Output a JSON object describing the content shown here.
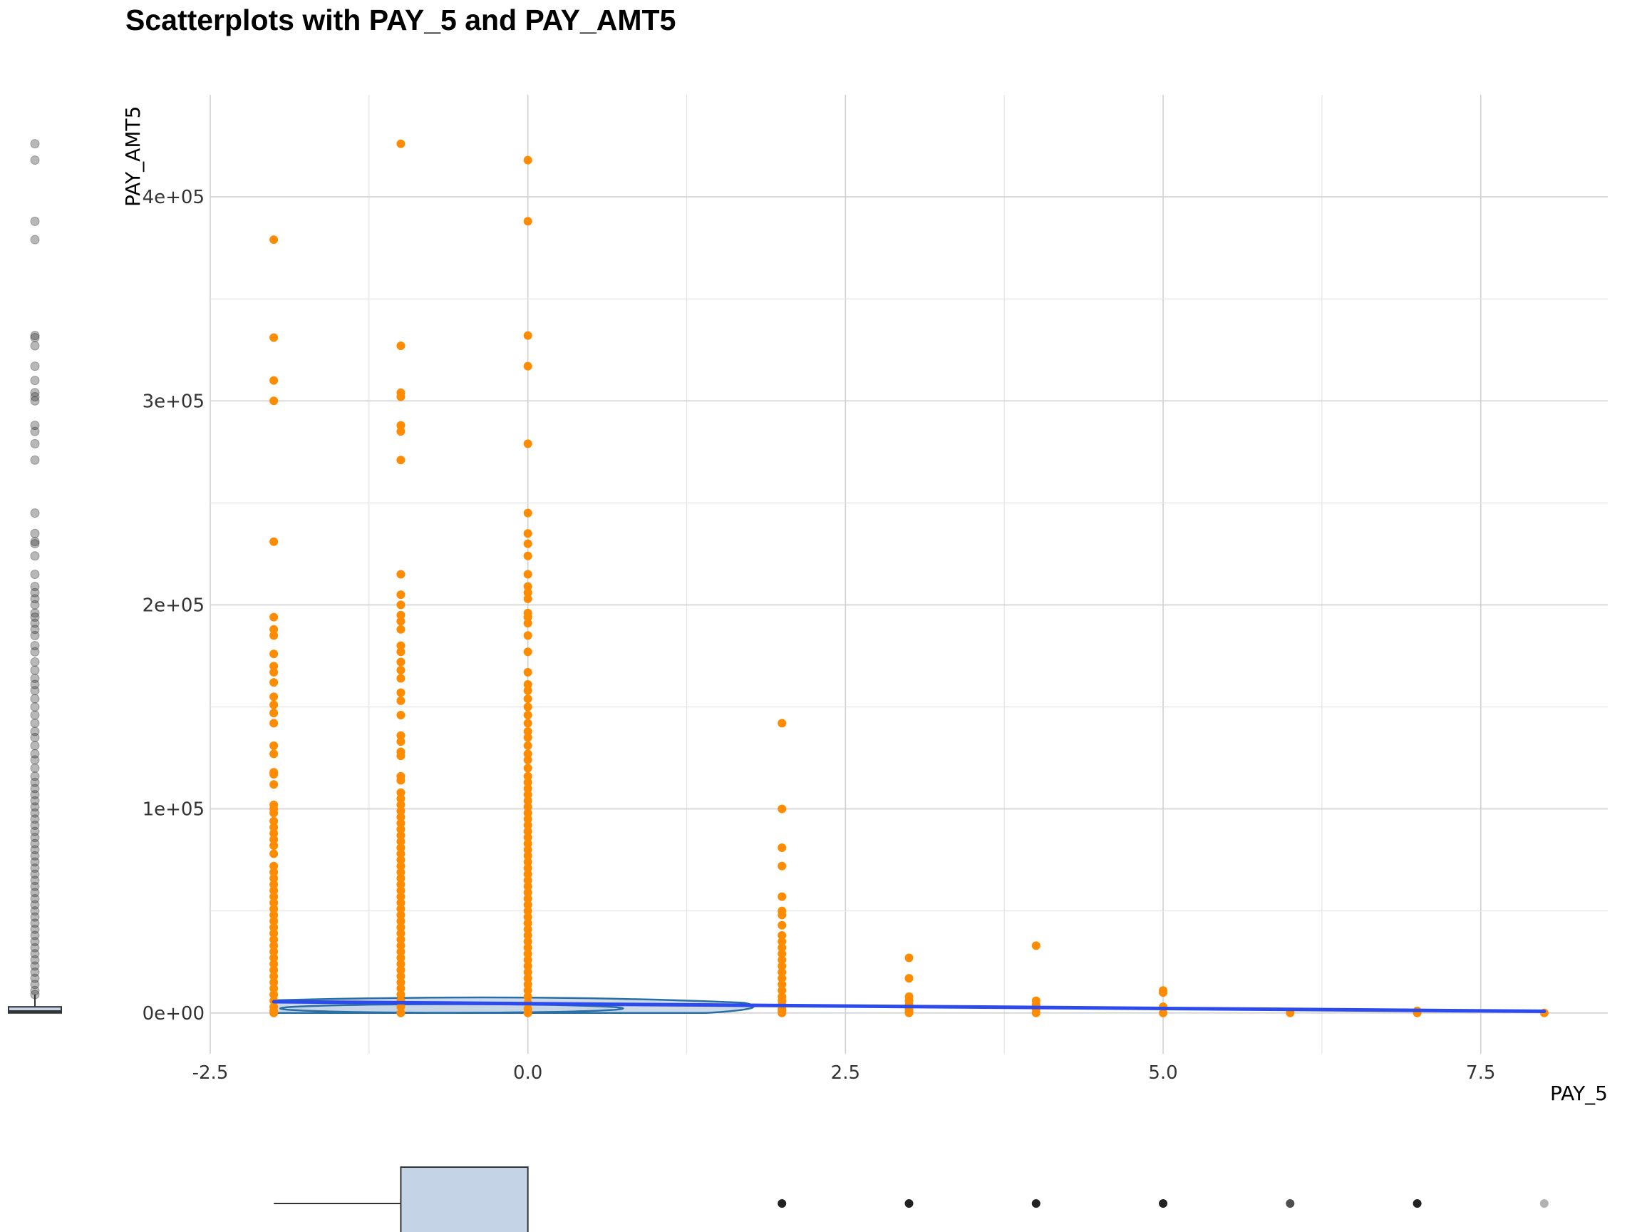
{
  "chart_data": {
    "type": "scatter",
    "title": "Scatterplots with PAY_5 and PAY_AMT5",
    "xlabel": "PAY_5",
    "ylabel": "PAY_AMT5",
    "xlim": [
      -2.5,
      8.5
    ],
    "ylim": [
      -20000,
      450000
    ],
    "x_ticks": [
      -2.5,
      0.0,
      2.5,
      5.0,
      7.5
    ],
    "x_tick_labels": [
      "-2.5",
      "0.0",
      "2.5",
      "5.0",
      "7.5"
    ],
    "y_ticks": [
      0,
      100000,
      200000,
      300000,
      400000
    ],
    "y_tick_labels": [
      "0e+00",
      "1e+05",
      "2e+05",
      "3e+05",
      "4e+05"
    ],
    "grid": true,
    "point_color": "#ff8c00",
    "smooth_color": "#2d4bec",
    "density_color": "#2a6ea6",
    "marginal_fill": "#c4d4e6",
    "series": [
      {
        "x": -2,
        "y": [
          379000,
          331000,
          310000,
          300000,
          231000,
          194000,
          188000,
          185000,
          176000,
          170000,
          167000,
          162000,
          155000,
          151000,
          147000,
          142000,
          131000,
          127000,
          118000,
          117000,
          112000,
          102000,
          100000,
          98000,
          94000,
          91000,
          88000,
          85000,
          82000,
          78000,
          72000,
          69000,
          66000,
          63000,
          60000,
          57000,
          54000,
          51000,
          48000,
          45000,
          42000,
          39000,
          36000,
          33000,
          30000,
          27000,
          24000,
          21000,
          18000,
          15000,
          12000,
          9000,
          6000,
          3000,
          1000,
          0
        ]
      },
      {
        "x": -1,
        "y": [
          426000,
          327000,
          304000,
          302000,
          288000,
          285000,
          271000,
          215000,
          205000,
          200000,
          195000,
          192000,
          188000,
          180000,
          177000,
          172000,
          168000,
          164000,
          157000,
          153000,
          146000,
          136000,
          133000,
          128000,
          126000,
          116000,
          114000,
          108000,
          105000,
          102000,
          99000,
          96000,
          93000,
          90000,
          87000,
          84000,
          81000,
          78000,
          75000,
          72000,
          69000,
          66000,
          63000,
          60000,
          57000,
          54000,
          51000,
          48000,
          45000,
          42000,
          39000,
          36000,
          33000,
          30000,
          27000,
          24000,
          21000,
          18000,
          15000,
          12000,
          9000,
          6000,
          3000,
          0
        ]
      },
      {
        "x": 0,
        "y": [
          418000,
          388000,
          332000,
          317000,
          279000,
          245000,
          235000,
          230000,
          224000,
          215000,
          209000,
          206000,
          203000,
          196000,
          194000,
          191000,
          185000,
          177000,
          167000,
          161000,
          158000,
          154000,
          150000,
          146000,
          142000,
          138000,
          135000,
          131000,
          127000,
          124000,
          120000,
          116000,
          113000,
          110000,
          107000,
          104000,
          101000,
          98000,
          95000,
          92000,
          89000,
          86000,
          83000,
          80000,
          77000,
          74000,
          71000,
          68000,
          65000,
          62000,
          59000,
          56000,
          53000,
          50000,
          47000,
          44000,
          41000,
          38000,
          35000,
          32000,
          29000,
          26000,
          23000,
          20000,
          17000,
          14000,
          11000,
          8000,
          5000,
          2000,
          0
        ]
      },
      {
        "x": 2,
        "y": [
          142000,
          100000,
          81000,
          72000,
          57000,
          50000,
          48000,
          43000,
          38000,
          35000,
          32000,
          29000,
          26000,
          23000,
          20000,
          17000,
          14000,
          11000,
          8000,
          6000,
          4000,
          2000,
          1000,
          0
        ]
      },
      {
        "x": 3,
        "y": [
          27000,
          17000,
          8000,
          6000,
          4000,
          2000,
          1000,
          0
        ]
      },
      {
        "x": 4,
        "y": [
          33000,
          6000,
          4000,
          2000,
          0
        ]
      },
      {
        "x": 5,
        "y": [
          11000,
          10000,
          3000,
          0
        ]
      },
      {
        "x": 6,
        "y": [
          0
        ]
      },
      {
        "x": 7,
        "y": [
          1000,
          0
        ]
      },
      {
        "x": 8,
        "y": [
          0
        ]
      }
    ],
    "smooth_line": {
      "x": [
        -2,
        8
      ],
      "y": [
        5500,
        800
      ]
    },
    "marginal_x_box": {
      "whisker_low": -2,
      "q1": -1,
      "q3": 0,
      "outliers": [
        2,
        3,
        4,
        5,
        6,
        7,
        8
      ]
    },
    "marginal_y_outliers": [
      426000,
      418000,
      388000,
      379000,
      332000,
      331000,
      327000,
      317000,
      310000,
      304000,
      302000,
      300000,
      288000,
      285000,
      279000,
      271000,
      245000,
      235000,
      231000,
      230000,
      224000,
      215000,
      209000,
      206000,
      203000,
      200000,
      196000,
      194000,
      191000,
      188000,
      185000,
      180000,
      177000,
      172000,
      168000,
      164000,
      161000,
      158000,
      154000,
      150000,
      146000,
      142000,
      138000,
      135000,
      131000,
      127000,
      124000,
      120000,
      116000,
      113000,
      110000,
      107000,
      104000,
      101000,
      98000,
      95000,
      92000,
      89000,
      86000,
      83000,
      80000,
      77000,
      74000,
      71000,
      68000,
      65000,
      62000,
      59000,
      56000,
      53000,
      50000,
      47000,
      44000,
      41000,
      38000,
      35000,
      32000,
      29000,
      26000,
      23000,
      20000,
      17000,
      14000,
      11000,
      9000
    ]
  }
}
